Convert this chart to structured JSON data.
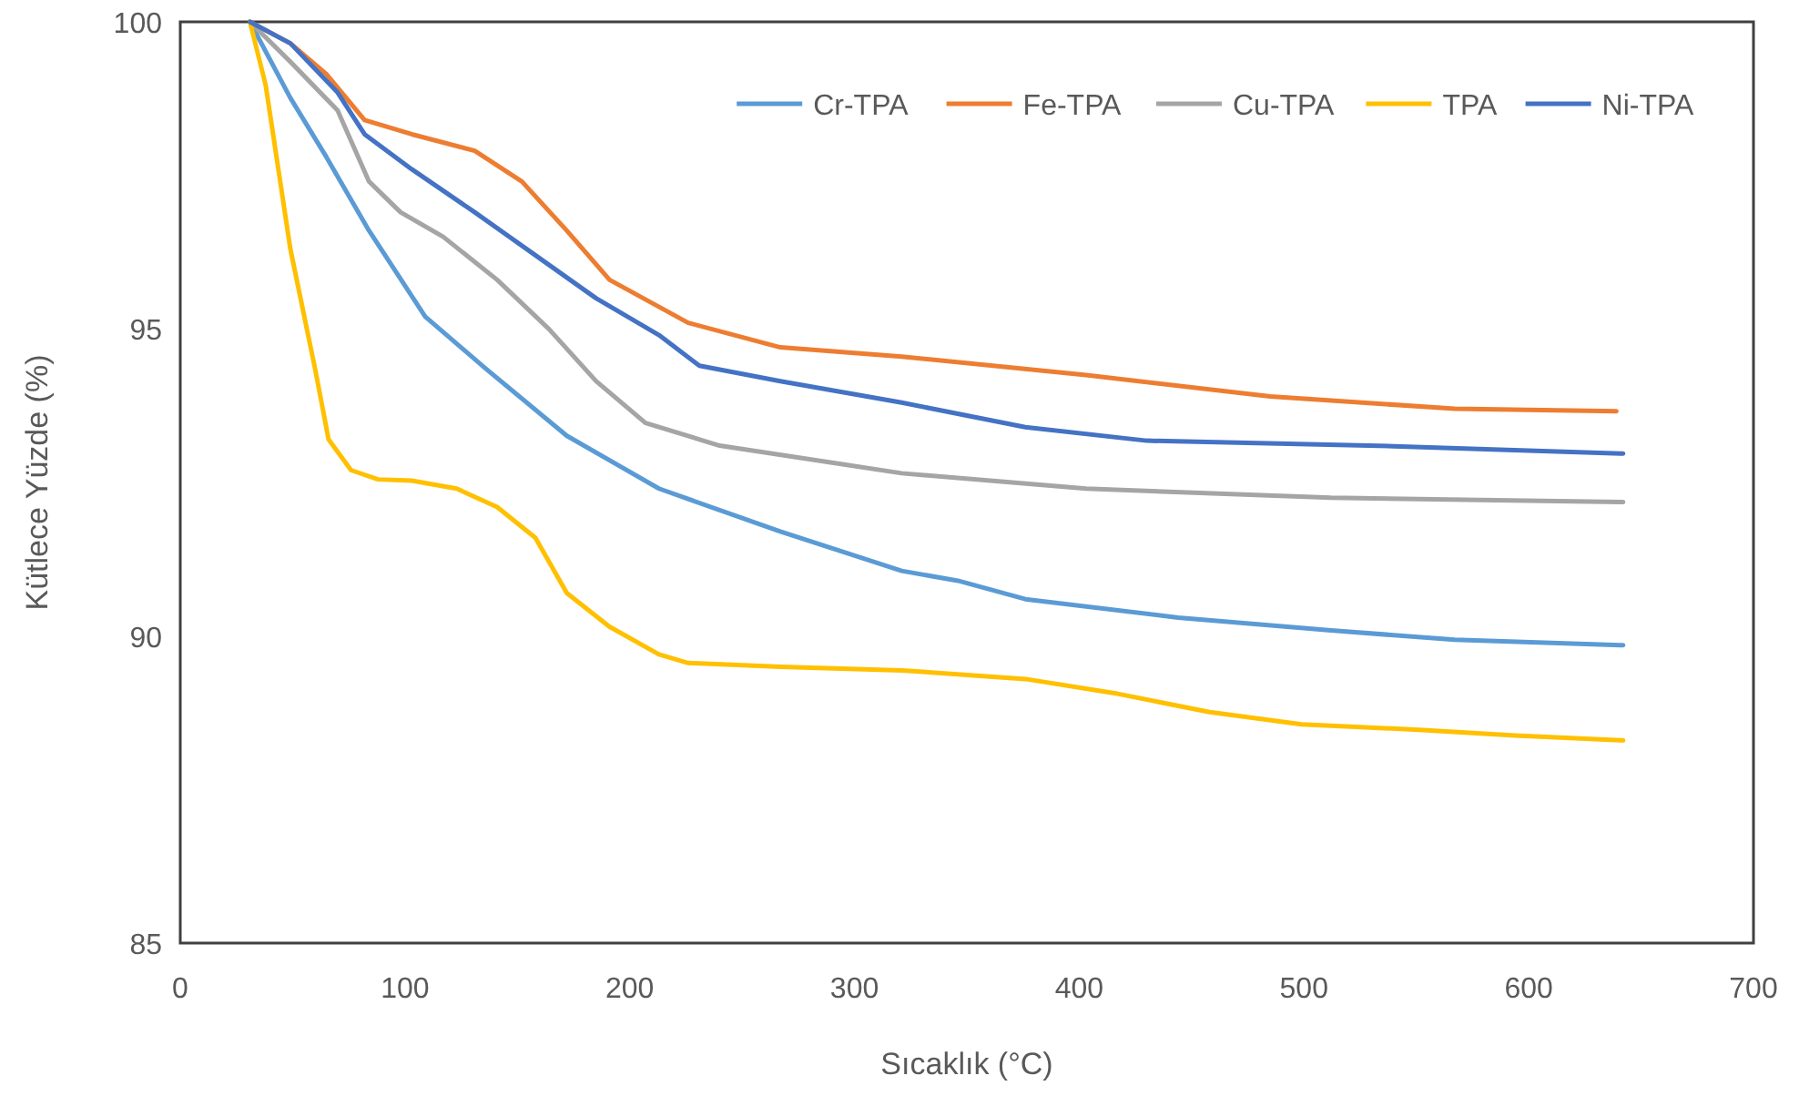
{
  "chart_data": {
    "type": "line",
    "xlabel": "Sıcaklık (°C)",
    "ylabel": "Kütlece Yüzde (%)",
    "xlim": [
      0,
      700
    ],
    "xticks": [
      0,
      100,
      200,
      300,
      400,
      500,
      600,
      700
    ],
    "ylim": [
      85,
      100
    ],
    "yticks": [
      85,
      90,
      95,
      100
    ],
    "grid": false,
    "legend": "top right",
    "marker": "none",
    "line_style": "solid",
    "series": [
      {
        "name": "Cr-TPA",
        "color": "#5b9bd5",
        "x": [
          31,
          49,
          65,
          84,
          109,
          136,
          172,
          213,
          267,
          321,
          346,
          376,
          444,
          512,
          567,
          642
        ],
        "values": [
          100,
          98.76,
          97.8,
          96.6,
          95.2,
          94.35,
          93.26,
          92.4,
          91.7,
          91.06,
          90.9,
          90.6,
          90.3,
          90.09,
          89.94,
          89.85
        ]
      },
      {
        "name": "Fe-TPA",
        "color": "#ed7d31",
        "x": [
          31,
          49,
          65,
          82,
          103,
          131,
          152,
          172,
          191,
          226,
          267,
          321,
          403,
          485,
          567,
          639
        ],
        "values": [
          100,
          99.65,
          99.15,
          98.4,
          98.17,
          97.9,
          97.4,
          96.6,
          95.8,
          95.1,
          94.7,
          94.55,
          94.25,
          93.9,
          93.7,
          93.66
        ]
      },
      {
        "name": "Cu-TPA",
        "color": "#a5a5a5",
        "x": [
          31,
          49,
          70,
          84,
          98,
          117,
          141,
          164,
          185,
          207,
          240,
          294,
          321,
          403,
          512,
          642
        ],
        "values": [
          100,
          99.35,
          98.56,
          97.4,
          96.9,
          96.5,
          95.8,
          95.0,
          94.15,
          93.47,
          93.1,
          92.8,
          92.65,
          92.4,
          92.25,
          92.18
        ]
      },
      {
        "name": "TPA",
        "color": "#ffc000",
        "x": [
          31,
          38,
          49,
          60,
          66,
          76,
          88,
          103,
          123,
          141,
          158,
          172,
          191,
          213,
          226,
          267,
          321,
          376,
          417,
          458,
          499,
          553,
          594,
          642
        ],
        "values": [
          100,
          98.97,
          96.3,
          94.35,
          93.2,
          92.7,
          92.55,
          92.53,
          92.4,
          92.1,
          91.6,
          90.7,
          90.15,
          89.7,
          89.56,
          89.5,
          89.44,
          89.3,
          89.06,
          88.76,
          88.56,
          88.47,
          88.38,
          88.3
        ]
      },
      {
        "name": "Ni-TPA",
        "color": "#4472c4",
        "x": [
          31,
          49,
          70,
          82,
          103,
          131,
          158,
          185,
          213,
          231,
          267,
          321,
          376,
          430,
          540,
          642
        ],
        "values": [
          100,
          99.65,
          98.85,
          98.17,
          97.6,
          96.9,
          96.2,
          95.5,
          94.9,
          94.4,
          94.15,
          93.8,
          93.4,
          93.18,
          93.09,
          92.97
        ]
      }
    ]
  }
}
